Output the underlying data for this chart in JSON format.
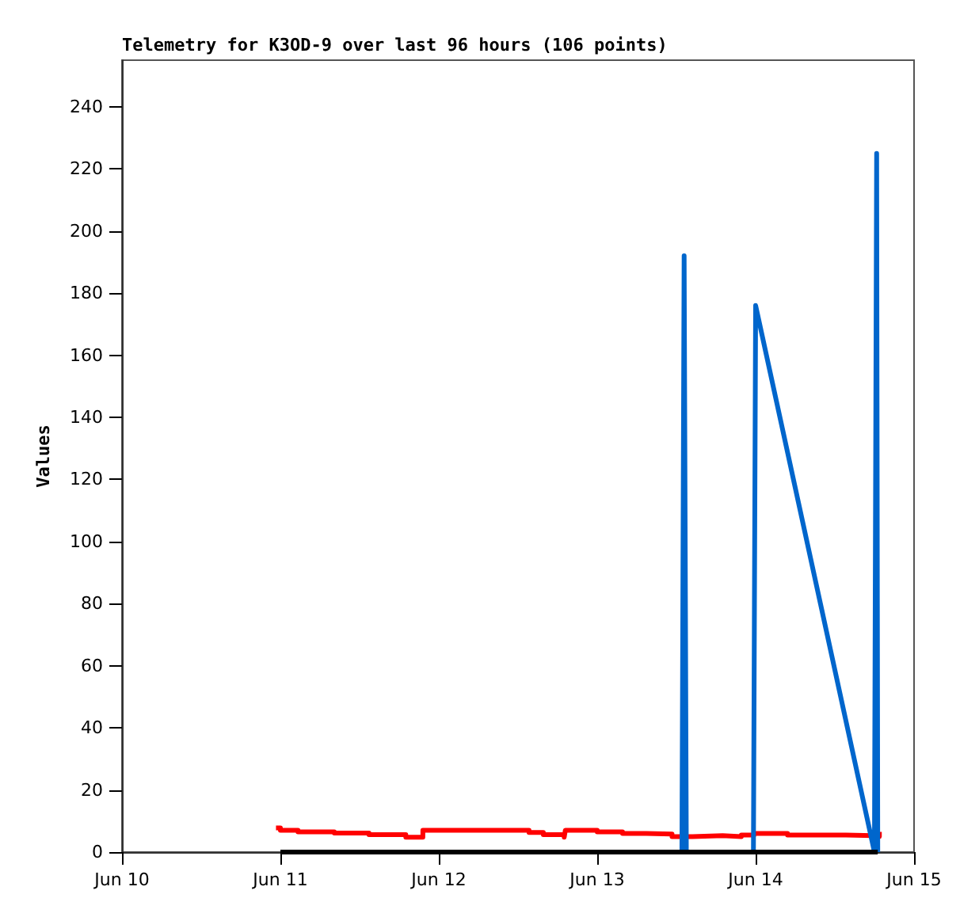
{
  "chart_data": {
    "type": "line",
    "title": "Telemetry for K3OD-9 over last 96 hours (106 points)",
    "ylabel": "Values",
    "ylim": [
      0,
      255
    ],
    "yticks": [
      0,
      20,
      40,
      60,
      80,
      100,
      120,
      140,
      160,
      180,
      200,
      220,
      240
    ],
    "xlim": [
      "--06-10T00:00",
      "--06-15T00:00"
    ],
    "xticks": [
      {
        "value": "--06-10T00:00",
        "label": "Jun 10"
      },
      {
        "value": "--06-11T00:00",
        "label": "Jun 11"
      },
      {
        "value": "--06-12T00:00",
        "label": "Jun 12"
      },
      {
        "value": "--06-13T00:00",
        "label": "Jun 13"
      },
      {
        "value": "--06-14T00:00",
        "label": "Jun 14"
      },
      {
        "value": "--06-15T00:00",
        "label": "Jun 15"
      }
    ],
    "grid": false,
    "marker": "none",
    "line_style": "solid",
    "series": [
      {
        "type": "step",
        "color": "#ff0000",
        "x": [
          "--06-10T23:20",
          "--06-11T00:00",
          "--06-11T02:40",
          "--06-11T08:10",
          "--06-11T13:25",
          "--06-11T19:00",
          "--06-11T21:35",
          "--06-12T13:40",
          "--06-12T15:50",
          "--06-12T19:00",
          "--06-12T19:10",
          "--06-13T00:00",
          "--06-13T03:50",
          "--06-13T07:25",
          "--06-13T11:20",
          "--06-13T14:25",
          "--06-13T19:00",
          "--06-13T21:50",
          "--06-13T23:45",
          "--06-14T04:50",
          "--06-14T13:40",
          "--06-14T17:45",
          "--06-14T18:45"
        ],
        "values": [
          7.8,
          7.0,
          6.5,
          6.1,
          5.6,
          4.8,
          7.0,
          6.3,
          5.6,
          4.8,
          7.0,
          6.5,
          6.0,
          5.8,
          5.0,
          5.3,
          5.0,
          5.5,
          6.0,
          5.5,
          5.3,
          5.0,
          6.5
        ]
      },
      {
        "color": "#0066cc",
        "x": [
          "--06-13T12:50",
          "--06-13T13:10",
          "--06-13T13:20",
          "--06-13T13:30",
          "--06-13T23:40",
          "--06-13T23:50",
          "--06-14T00:00",
          "--06-14T18:00",
          "--06-14T18:20",
          "--06-14T18:30"
        ],
        "values": [
          0,
          192,
          96,
          0,
          0,
          88,
          176,
          0,
          225,
          0
        ]
      },
      {
        "color": "#000000",
        "x": [
          "--06-11T00:00",
          "--06-14T18:30"
        ],
        "values": [
          0,
          0
        ]
      }
    ]
  }
}
